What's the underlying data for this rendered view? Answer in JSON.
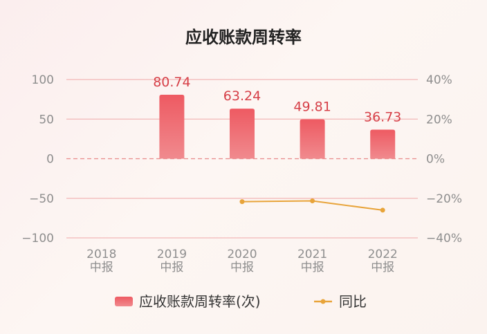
{
  "chart_data": {
    "type": "bar",
    "title": "应收账款周转率",
    "categories": [
      [
        "2018",
        "中报"
      ],
      [
        "2019",
        "中报"
      ],
      [
        "2020",
        "中报"
      ],
      [
        "2021",
        "中报"
      ],
      [
        "2022",
        "中报"
      ]
    ],
    "series": [
      {
        "name": "应收账款周转率(次)",
        "type": "bar",
        "axis": "left",
        "values": [
          null,
          80.74,
          63.24,
          49.81,
          36.73
        ],
        "labels": [
          "",
          "80.74",
          "63.24",
          "49.81",
          "36.73"
        ],
        "color": "#e8525a"
      },
      {
        "name": "同比",
        "type": "line",
        "axis": "right",
        "values": [
          null,
          null,
          -21.7,
          -21.3,
          -26.0
        ],
        "color": "#e8a43a"
      }
    ],
    "y_left": {
      "ylim": [
        -100,
        100
      ],
      "ticks": [
        "100",
        "50",
        "0",
        "−50",
        "−100"
      ]
    },
    "y_right": {
      "ylim": [
        -40,
        40
      ],
      "ticks": [
        "40%",
        "20%",
        "0%",
        "−20%",
        "−40%"
      ]
    },
    "grid": true,
    "legend_position": "bottom"
  }
}
